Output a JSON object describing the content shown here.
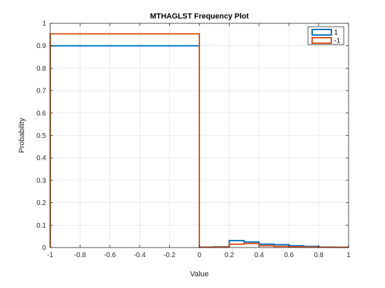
{
  "chart_data": {
    "type": "line",
    "title": "MTHAGLST Frequency Plot",
    "xlabel": "Value",
    "ylabel": "Probability",
    "xlim": [
      -1,
      1
    ],
    "ylim": [
      0,
      1
    ],
    "xticks": [
      -1,
      -0.8,
      -0.6,
      -0.4,
      -0.2,
      0,
      0.2,
      0.4,
      0.6,
      0.8,
      1
    ],
    "xtick_labels": [
      "-1",
      "-0.8",
      "-0.6",
      "-0.4",
      "-0.2",
      "0",
      "0.2",
      "0.4",
      "0.6",
      "0.8",
      "1"
    ],
    "yticks": [
      0,
      0.1,
      0.2,
      0.3,
      0.4,
      0.5,
      0.6,
      0.7,
      0.8,
      0.9,
      1
    ],
    "ytick_labels": [
      "0",
      "0.1",
      "0.2",
      "0.3",
      "0.4",
      "0.5",
      "0.6",
      "0.7",
      "0.8",
      "0.9",
      "1"
    ],
    "grid": true,
    "legend_position": "top-right",
    "series": [
      {
        "name": "1",
        "color": "#0072BD",
        "bins": [
          {
            "x0": -1,
            "x1": 0,
            "y": 0.9
          },
          {
            "x0": 0,
            "x1": 0.1,
            "y": 0.002
          },
          {
            "x0": 0.1,
            "x1": 0.2,
            "y": 0.003
          },
          {
            "x0": 0.2,
            "x1": 0.3,
            "y": 0.031
          },
          {
            "x0": 0.3,
            "x1": 0.4,
            "y": 0.025
          },
          {
            "x0": 0.4,
            "x1": 0.5,
            "y": 0.015
          },
          {
            "x0": 0.5,
            "x1": 0.6,
            "y": 0.013
          },
          {
            "x0": 0.6,
            "x1": 0.7,
            "y": 0.008
          },
          {
            "x0": 0.7,
            "x1": 0.8,
            "y": 0.005
          },
          {
            "x0": 0.8,
            "x1": 0.9,
            "y": 0.002
          },
          {
            "x0": 0.9,
            "x1": 1.0,
            "y": 0.001
          }
        ]
      },
      {
        "name": "-1",
        "color": "#D95319",
        "bins": [
          {
            "x0": -1,
            "x1": 0,
            "y": 0.953
          },
          {
            "x0": 0,
            "x1": 0.1,
            "y": 0.001
          },
          {
            "x0": 0.1,
            "x1": 0.2,
            "y": 0.002
          },
          {
            "x0": 0.2,
            "x1": 0.3,
            "y": 0.015
          },
          {
            "x0": 0.3,
            "x1": 0.4,
            "y": 0.018
          },
          {
            "x0": 0.4,
            "x1": 0.5,
            "y": 0.008
          },
          {
            "x0": 0.5,
            "x1": 0.6,
            "y": 0.005
          },
          {
            "x0": 0.6,
            "x1": 0.7,
            "y": 0.003
          },
          {
            "x0": 0.7,
            "x1": 0.8,
            "y": 0.002
          },
          {
            "x0": 0.8,
            "x1": 0.9,
            "y": 0.001
          },
          {
            "x0": 0.9,
            "x1": 1.0,
            "y": 0.001
          }
        ]
      }
    ]
  }
}
